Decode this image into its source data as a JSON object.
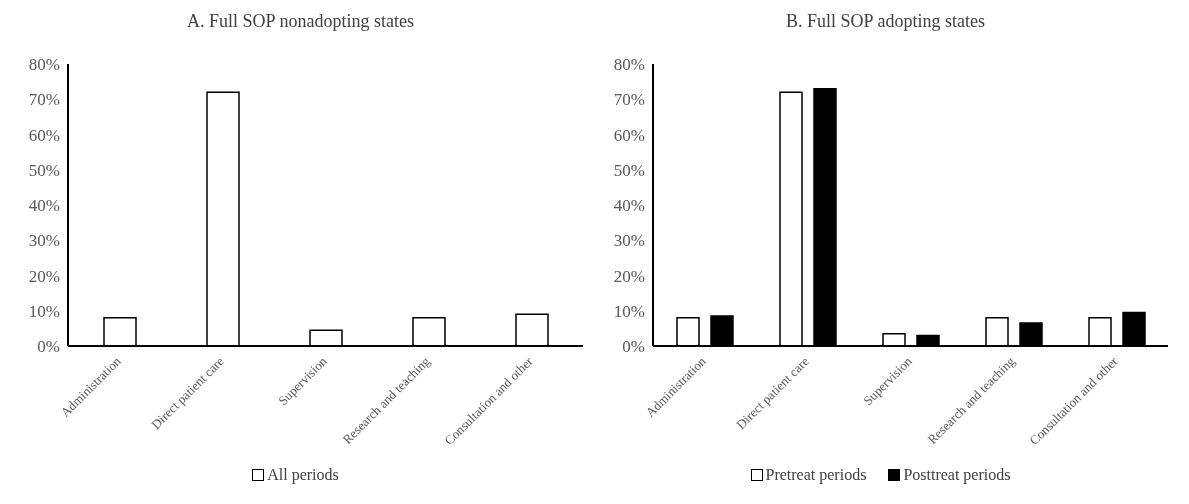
{
  "chart_data": [
    {
      "type": "bar",
      "title": "A. Full SOP nonadopting states",
      "categories": [
        "Administration",
        "Direct patient care",
        "Supervision",
        "Research and teaching",
        "Consultation and other"
      ],
      "series": [
        {
          "name": "All periods",
          "color": "#ffffff",
          "values": [
            8,
            72,
            4.5,
            8,
            9
          ]
        }
      ],
      "ylim": [
        0,
        80
      ],
      "yticks": [
        {
          "value": 0,
          "label": "0%"
        },
        {
          "value": 10,
          "label": "10%"
        },
        {
          "value": 20,
          "label": "20%"
        },
        {
          "value": 30,
          "label": "30%"
        },
        {
          "value": 40,
          "label": "40%"
        },
        {
          "value": 50,
          "label": "50%"
        },
        {
          "value": 60,
          "label": "60%"
        },
        {
          "value": 70,
          "label": "70%"
        },
        {
          "value": 80,
          "label": "80%"
        }
      ],
      "grid": false,
      "legend": "bottom"
    },
    {
      "type": "bar",
      "title": "B. Full SOP adopting states",
      "categories": [
        "Administration",
        "Direct patient care",
        "Supervision",
        "Research and teaching",
        "Consultation and other"
      ],
      "series": [
        {
          "name": "Pretreat periods",
          "color": "#ffffff",
          "values": [
            8,
            72,
            3.5,
            8,
            8
          ]
        },
        {
          "name": "Posttreat periods",
          "color": "#000000",
          "values": [
            8.5,
            73,
            3,
            6.5,
            9.5
          ]
        }
      ],
      "ylim": [
        0,
        80
      ],
      "yticks": [
        {
          "value": 0,
          "label": "0%"
        },
        {
          "value": 10,
          "label": "10%"
        },
        {
          "value": 20,
          "label": "20%"
        },
        {
          "value": 30,
          "label": "30%"
        },
        {
          "value": 40,
          "label": "40%"
        },
        {
          "value": 50,
          "label": "50%"
        },
        {
          "value": 60,
          "label": "60%"
        },
        {
          "value": 70,
          "label": "70%"
        },
        {
          "value": 80,
          "label": "80%"
        }
      ],
      "grid": false,
      "legend": "bottom"
    }
  ]
}
